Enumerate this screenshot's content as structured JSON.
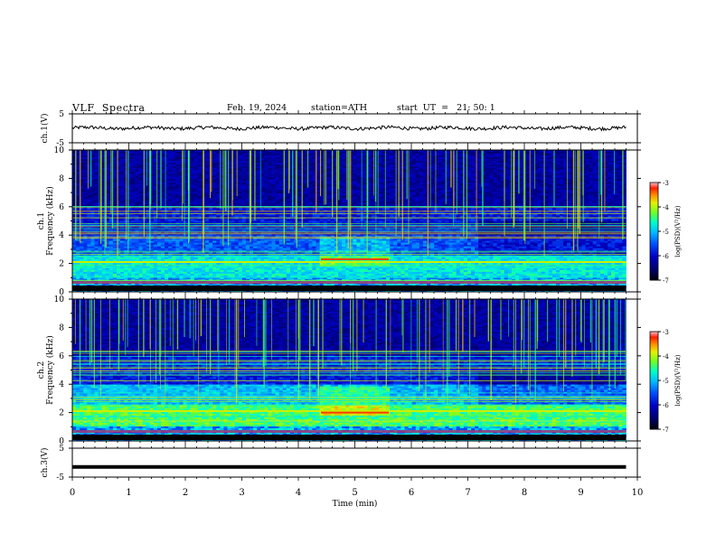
{
  "header": {
    "title": "VLF  Spectra",
    "date": "Feb. 19, 2024",
    "station": "station=ATH",
    "start": "start  UT  =   21: 50: 1"
  },
  "chart_data": [
    {
      "type": "line",
      "name": "waveform-ch1",
      "ylabel": "ch.1(V)",
      "ylim": [
        -5,
        5
      ],
      "yticks": [
        5,
        -5
      ],
      "xlim": [
        0,
        10
      ],
      "approx_level": 0.1,
      "noise_amplitude": 0.6
    },
    {
      "type": "heatmap",
      "name": "spectrogram-ch1",
      "ylabel": "ch.1 Frequency (kHz)",
      "ylim": [
        0,
        10
      ],
      "yticks": [
        0,
        2,
        4,
        6,
        8,
        10
      ],
      "xlim": [
        0,
        9.8
      ],
      "colorbar": {
        "label": "log(PSD)(V²/Hz)",
        "range": [
          -7,
          -3
        ],
        "ticks": [
          -3,
          -4,
          -5,
          -6,
          -7
        ],
        "colors": [
          "#000000",
          "#0000aa",
          "#0044ff",
          "#00aaff",
          "#00ffcc",
          "#66ff33",
          "#ccff00",
          "#ffaa00",
          "#ff2200",
          "#ff9999",
          "#ffffff"
        ]
      },
      "segments_min": [
        0,
        4.4,
        5.6,
        7.2,
        9.8
      ]
    },
    {
      "type": "heatmap",
      "name": "spectrogram-ch2",
      "ylabel": "ch.2 Frequency (kHz)",
      "ylim": [
        0,
        10
      ],
      "yticks": [
        0,
        2,
        4,
        6,
        8,
        10
      ],
      "xlim": [
        0,
        9.8
      ],
      "colorbar": {
        "label": "log(PSD)(V²/Hz)",
        "range": [
          -7,
          -3
        ],
        "ticks": [
          -3,
          -4,
          -5,
          -6,
          -7
        ]
      },
      "segments_min": [
        0,
        4.4,
        5.6,
        7.2,
        9.8
      ]
    },
    {
      "type": "line",
      "name": "waveform-ch3",
      "ylabel": "ch.3(V)",
      "ylim": [
        -5,
        5
      ],
      "yticks": [
        5,
        -5
      ],
      "xlim": [
        0,
        10
      ],
      "approx_level": -1.5,
      "noise_amplitude": 0
    }
  ],
  "xaxis": {
    "label": "Time (min)",
    "ticks": [
      "0",
      "1",
      "2",
      "3",
      "4",
      "5",
      "6",
      "7",
      "8",
      "9",
      "10"
    ],
    "range": [
      0,
      10
    ]
  }
}
